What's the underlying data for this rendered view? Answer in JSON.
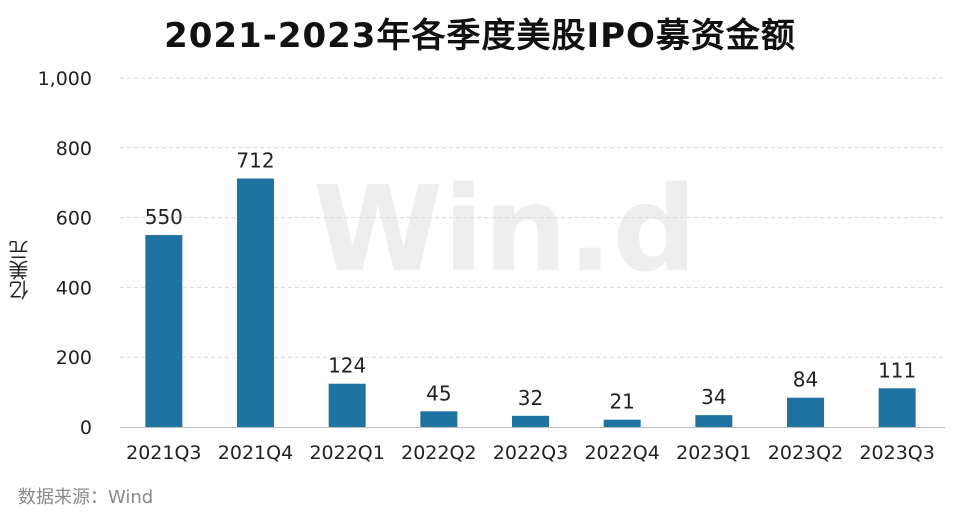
{
  "chart_data": {
    "type": "bar",
    "title": "2021-2023年各季度美股IPO募资金额",
    "ylabel": "亿美元",
    "xlabel": "",
    "categories": [
      "2021Q3",
      "2021Q4",
      "2022Q1",
      "2022Q2",
      "2022Q3",
      "2022Q4",
      "2023Q1",
      "2023Q2",
      "2023Q3"
    ],
    "values": [
      550,
      712,
      124,
      45,
      32,
      21,
      34,
      84,
      111
    ],
    "data_labels": [
      "550",
      "712",
      "124",
      "45",
      "32",
      "21",
      "34",
      "84",
      "111"
    ],
    "ylim": [
      0,
      1000
    ],
    "yticks": [
      0,
      200,
      400,
      600,
      800,
      1000
    ],
    "ytick_labels": [
      "0",
      "200",
      "400",
      "600",
      "800",
      "1,000"
    ],
    "grid": "horizontal dashed",
    "bar_color": "#1f73a3",
    "grid_color": "#d9d9d9"
  },
  "watermark": "Win.d",
  "source": "数据来源：Wind"
}
